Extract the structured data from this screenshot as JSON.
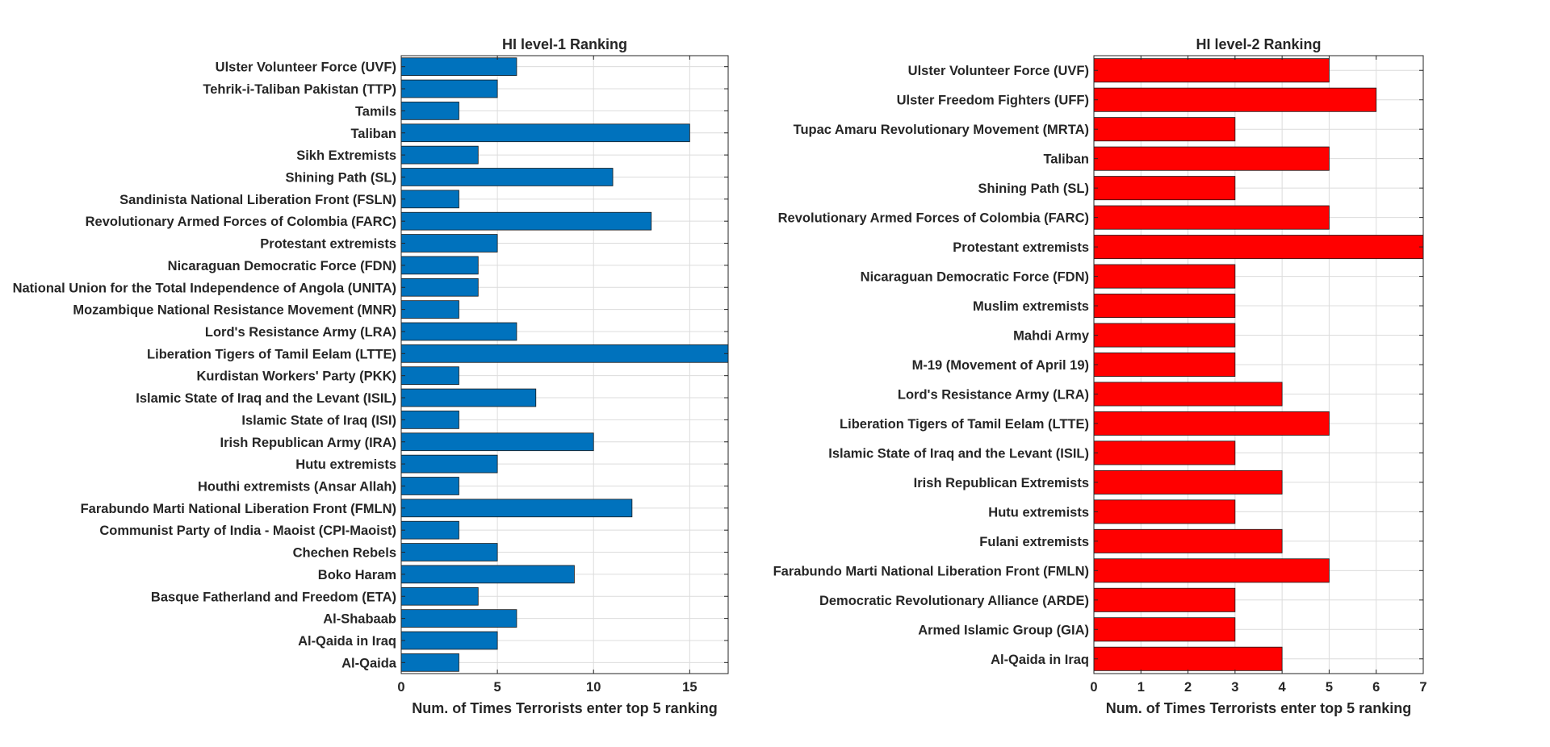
{
  "chart_data": [
    {
      "type": "bar",
      "orientation": "horizontal",
      "title": "HI level-1 Ranking",
      "xlabel": "Num. of Times Terrorists enter top 5 ranking",
      "ylabel": "",
      "xlim": [
        0,
        17
      ],
      "xticks": [
        0,
        5,
        10,
        15
      ],
      "grid": true,
      "color": "#0072bd",
      "categories": [
        "Ulster Volunteer Force (UVF)",
        "Tehrik-i-Taliban Pakistan (TTP)",
        "Tamils",
        "Taliban",
        "Sikh Extremists",
        "Shining Path (SL)",
        "Sandinista National Liberation Front (FSLN)",
        "Revolutionary Armed Forces of Colombia (FARC)",
        "Protestant extremists",
        "Nicaraguan Democratic Force (FDN)",
        "National Union for the Total Independence of Angola (UNITA)",
        "Mozambique National Resistance Movement (MNR)",
        "Lord's Resistance Army (LRA)",
        "Liberation Tigers of Tamil Eelam (LTTE)",
        "Kurdistan Workers' Party (PKK)",
        "Islamic State of Iraq and the Levant (ISIL)",
        "Islamic State of Iraq (ISI)",
        "Irish Republican Army (IRA)",
        "Hutu extremists",
        "Houthi extremists (Ansar Allah)",
        "Farabundo Marti National Liberation Front (FMLN)",
        "Communist Party of India - Maoist (CPI-Maoist)",
        "Chechen Rebels",
        "Boko Haram",
        "Basque Fatherland and Freedom (ETA)",
        "Al-Shabaab",
        "Al-Qaida in Iraq",
        "Al-Qaida"
      ],
      "values": [
        6,
        5,
        3,
        15,
        4,
        11,
        3,
        13,
        5,
        4,
        4,
        3,
        6,
        17,
        3,
        7,
        3,
        10,
        5,
        3,
        12,
        3,
        5,
        9,
        4,
        6,
        5,
        3
      ]
    },
    {
      "type": "bar",
      "orientation": "horizontal",
      "title": "HI level-2 Ranking",
      "xlabel": "Num. of Times Terrorists enter top 5 ranking",
      "ylabel": "",
      "xlim": [
        0,
        7
      ],
      "xticks": [
        0,
        1,
        2,
        3,
        4,
        5,
        6,
        7
      ],
      "grid": true,
      "color": "#ff0000",
      "categories": [
        "Ulster Volunteer Force (UVF)",
        "Ulster Freedom Fighters (UFF)",
        "Tupac Amaru Revolutionary Movement (MRTA)",
        "Taliban",
        "Shining Path (SL)",
        "Revolutionary Armed Forces of Colombia (FARC)",
        "Protestant extremists",
        "Nicaraguan Democratic Force (FDN)",
        "Muslim extremists",
        "Mahdi Army",
        "M-19 (Movement of April 19)",
        "Lord's Resistance Army (LRA)",
        "Liberation Tigers of Tamil Eelam (LTTE)",
        "Islamic State of Iraq and the Levant (ISIL)",
        "Irish Republican Extremists",
        "Hutu extremists",
        "Fulani extremists",
        "Farabundo Marti National Liberation Front (FMLN)",
        "Democratic Revolutionary Alliance (ARDE)",
        "Armed Islamic Group (GIA)",
        "Al-Qaida in Iraq"
      ],
      "values": [
        5,
        6,
        3,
        5,
        3,
        5,
        7,
        3,
        3,
        3,
        3,
        4,
        5,
        3,
        4,
        3,
        4,
        5,
        3,
        3,
        4
      ]
    }
  ]
}
